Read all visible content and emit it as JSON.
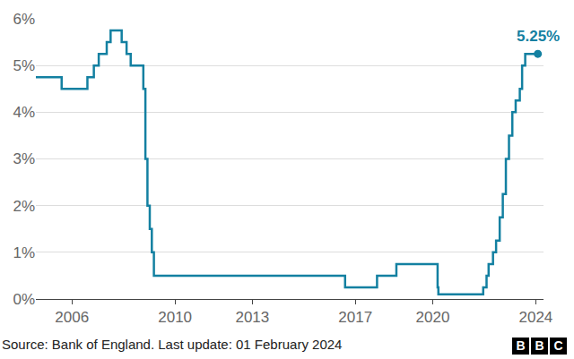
{
  "chart_data": {
    "type": "line",
    "line_style": "step",
    "marker": "last",
    "color": "#1380a1",
    "grid": true,
    "x": [
      2004.6,
      2005.6,
      2006.6,
      2006.85,
      2007.04,
      2007.35,
      2007.5,
      2007.93,
      2008.12,
      2008.28,
      2008.77,
      2008.85,
      2008.93,
      2009.02,
      2009.1,
      2009.18,
      2016.6,
      2017.84,
      2018.59,
      2020.19,
      2020.22,
      2021.96,
      2022.09,
      2022.17,
      2022.34,
      2022.46,
      2022.6,
      2022.72,
      2022.84,
      2022.96,
      2023.09,
      2023.22,
      2023.38,
      2023.47,
      2023.59,
      2024.08
    ],
    "values": [
      4.75,
      4.5,
      4.75,
      5.0,
      5.25,
      5.5,
      5.75,
      5.5,
      5.25,
      5.0,
      4.5,
      3.0,
      2.0,
      1.5,
      1.0,
      0.5,
      0.25,
      0.5,
      0.75,
      0.25,
      0.1,
      0.25,
      0.5,
      0.75,
      1.0,
      1.25,
      1.75,
      2.25,
      3.0,
      3.5,
      4.0,
      4.25,
      4.5,
      5.0,
      5.25,
      5.25
    ],
    "xlim": [
      2004.6,
      2024.3
    ],
    "xticks": [
      2006,
      2010,
      2013,
      2017,
      2020,
      2024
    ],
    "ylim": [
      0,
      6
    ],
    "yticks": [
      {
        "value": 0,
        "label": "0%"
      },
      {
        "value": 1,
        "label": "1%"
      },
      {
        "value": 2,
        "label": "2%"
      },
      {
        "value": 3,
        "label": "3%"
      },
      {
        "value": 4,
        "label": "4%"
      },
      {
        "value": 5,
        "label": "5%"
      },
      {
        "value": 6,
        "label": "6%"
      }
    ],
    "annotations": [
      {
        "text": "5.25%",
        "x": 2024.08,
        "y": 5.25
      }
    ],
    "source": "Source: Bank of England. Last update: 01 February 2024",
    "logo": "BBC"
  }
}
